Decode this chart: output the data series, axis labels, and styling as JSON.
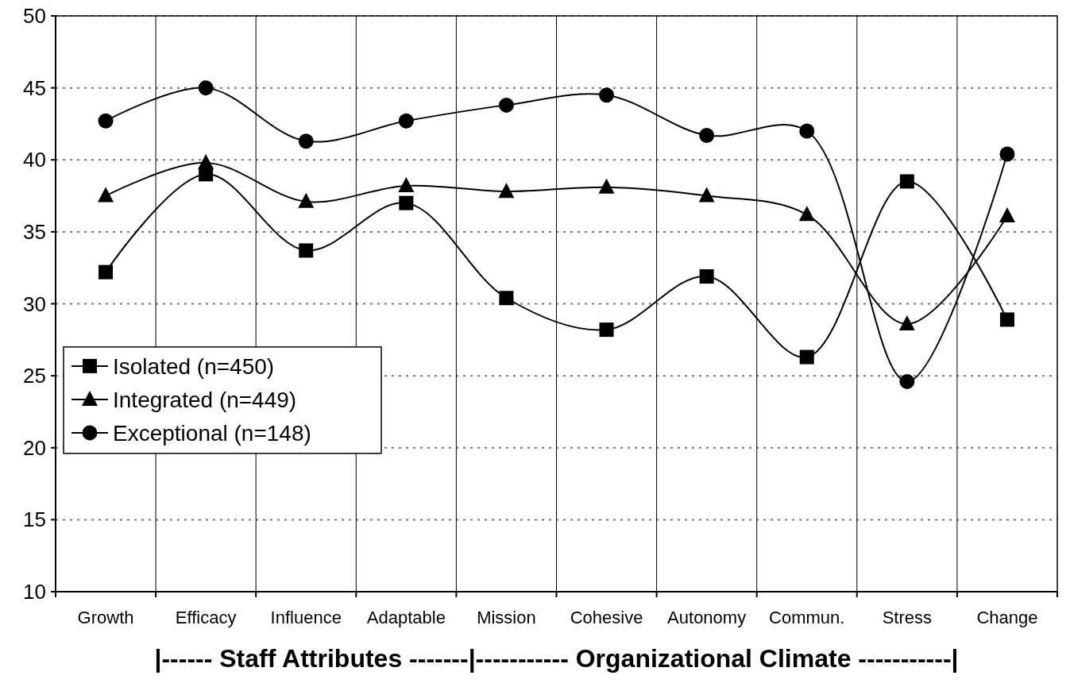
{
  "chart_data": {
    "type": "line",
    "xlabel": "|------ Staff Attributes -------|----------- Organizational Climate -----------|",
    "categories": [
      "Growth",
      "Efficacy",
      "Influence",
      "Adaptable",
      "Mission",
      "Cohesive",
      "Autonomy",
      "Commun.",
      "Stress",
      "Change"
    ],
    "series": [
      {
        "name": "Isolated (n=450)",
        "color": "#000000",
        "marker": "square",
        "values": [
          32.2,
          39.0,
          33.7,
          37.0,
          30.4,
          28.2,
          31.9,
          26.3,
          38.5,
          28.9
        ]
      },
      {
        "name": "Integrated (n=449)",
        "color": "#000000",
        "marker": "triangle",
        "values": [
          37.5,
          39.8,
          37.1,
          38.2,
          37.8,
          38.1,
          37.5,
          36.2,
          28.6,
          36.1
        ]
      },
      {
        "name": "Exceptional (n=148)",
        "color": "#000000",
        "marker": "circle",
        "values": [
          42.7,
          45.0,
          41.3,
          42.7,
          43.8,
          44.5,
          41.7,
          42.0,
          24.6,
          40.4
        ]
      }
    ],
    "ylim": [
      10,
      50
    ],
    "yticks": [
      10,
      15,
      20,
      25,
      30,
      35,
      40,
      45,
      50
    ],
    "grid": true,
    "legend": "left",
    "line_style": "solid"
  }
}
